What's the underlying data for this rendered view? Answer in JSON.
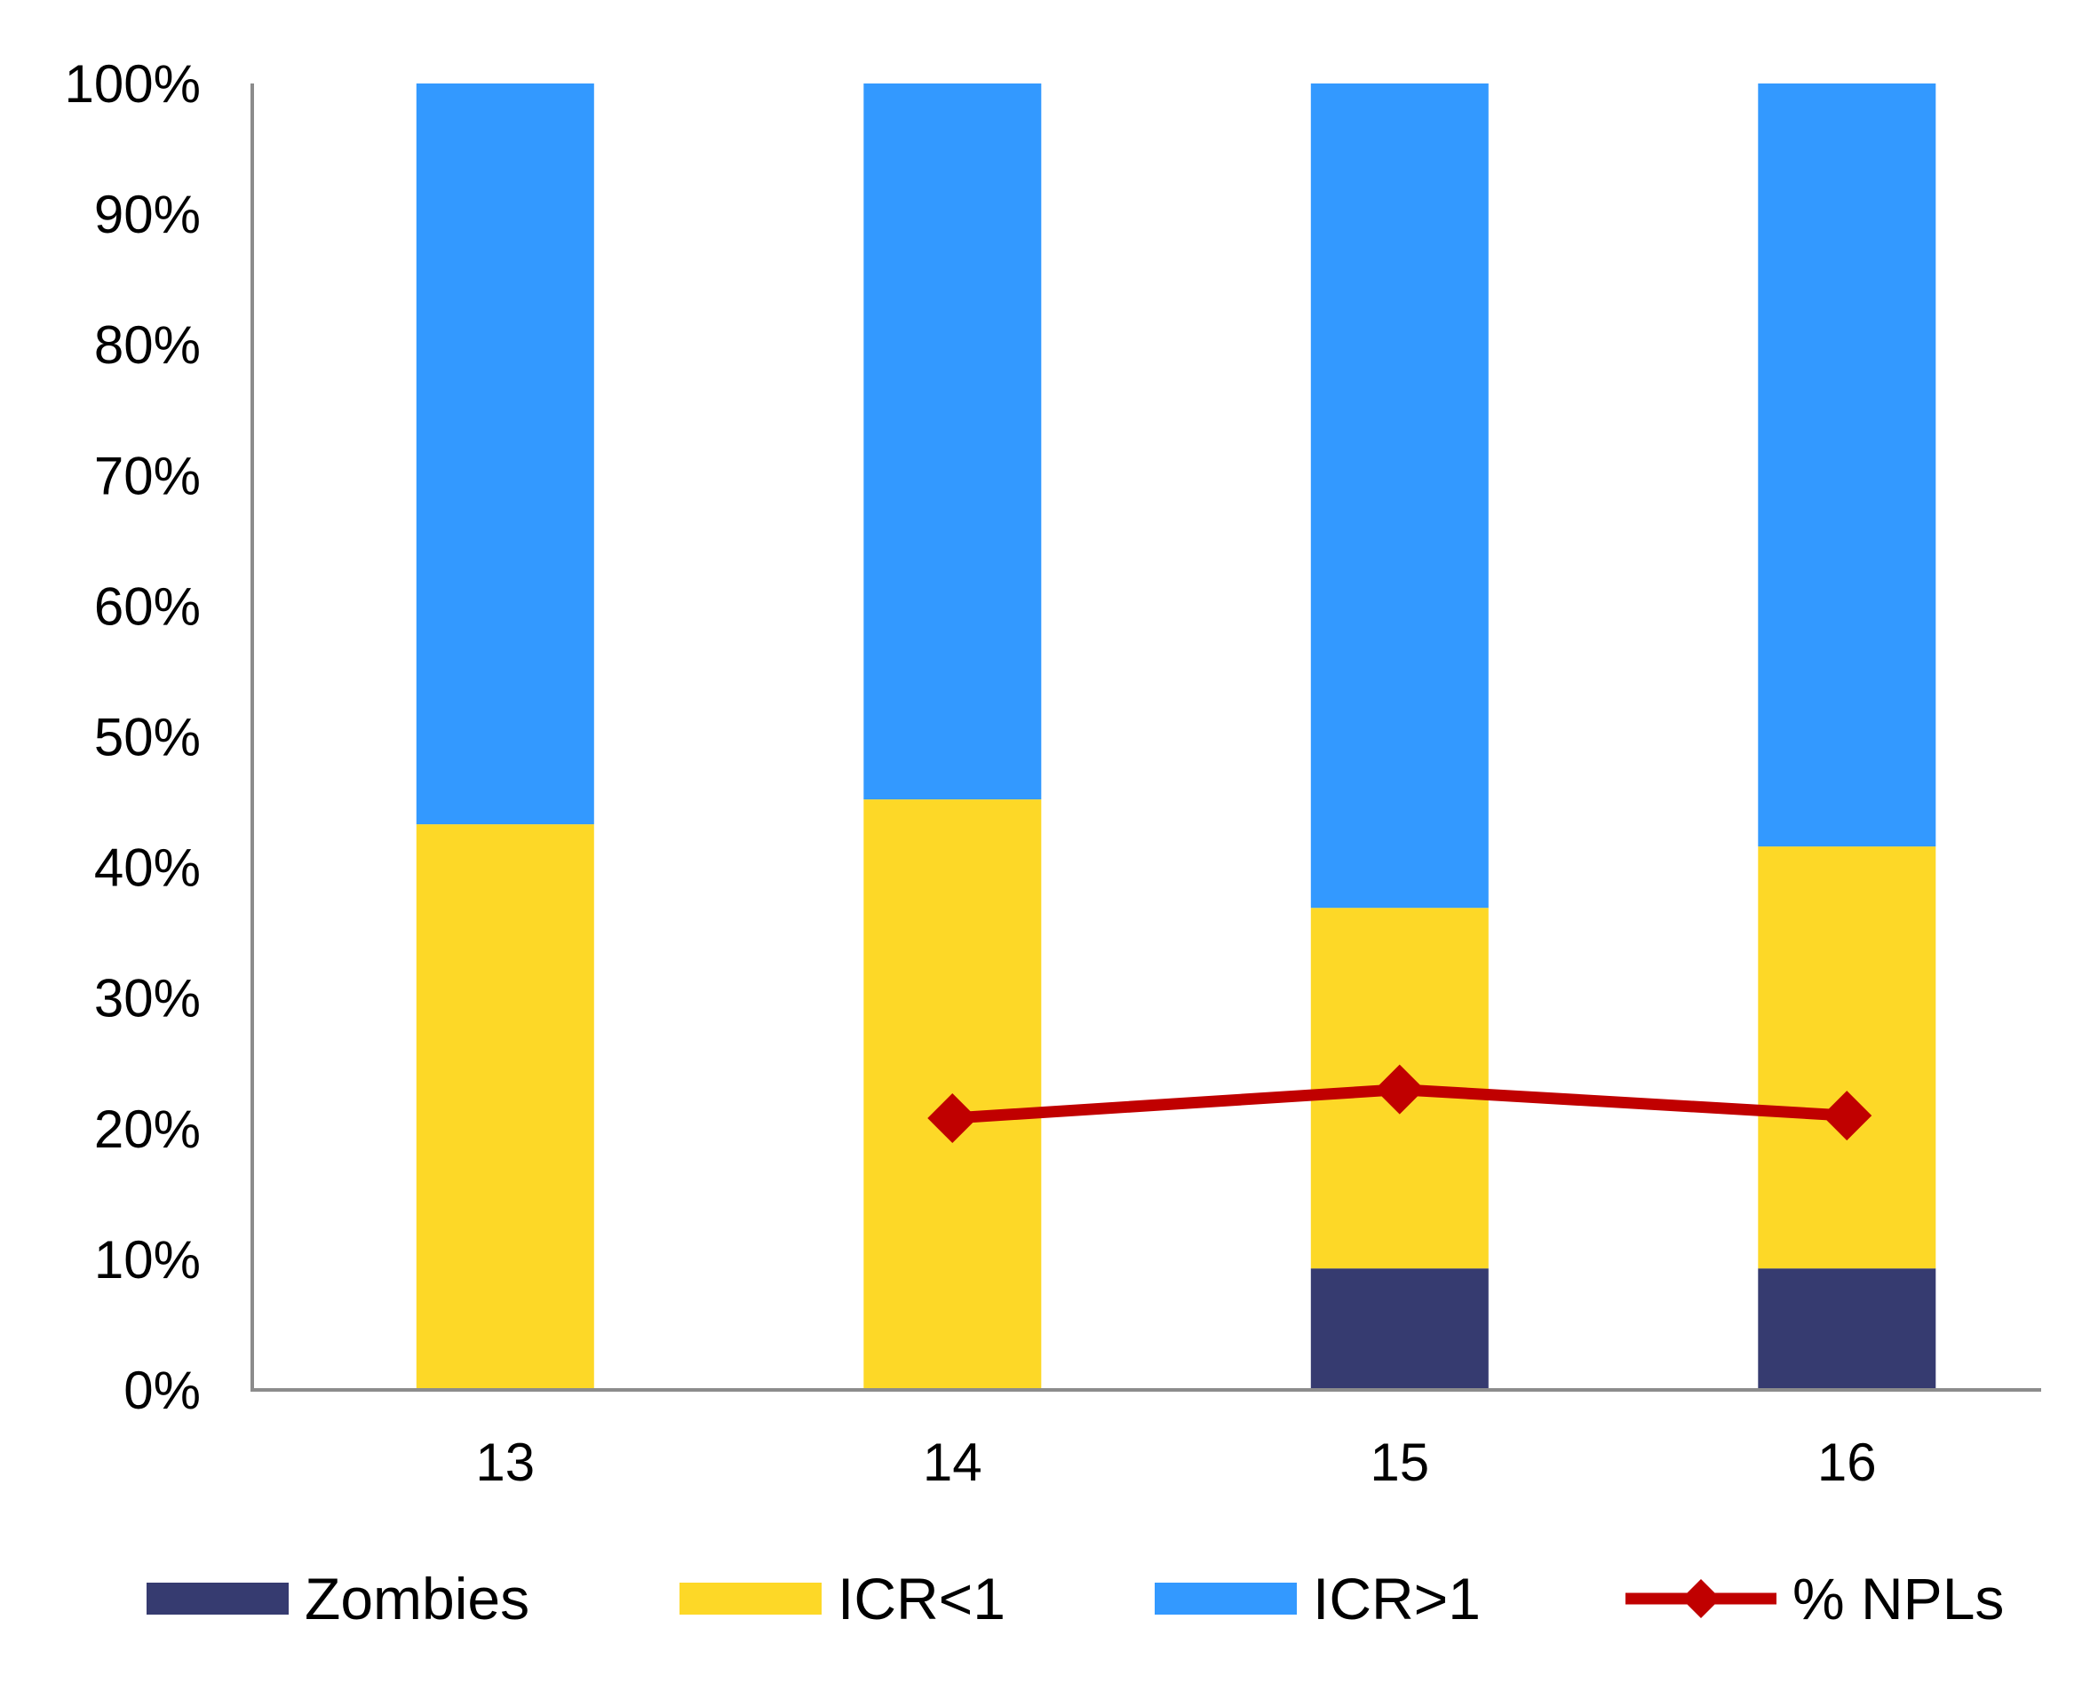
{
  "chart_data": {
    "type": "bar",
    "stacked": true,
    "title": "",
    "xlabel": "",
    "ylabel": "",
    "ylim": [
      0,
      100
    ],
    "yticks": [
      "0%",
      "10%",
      "20%",
      "30%",
      "40%",
      "50%",
      "60%",
      "70%",
      "80%",
      "90%",
      "100%"
    ],
    "categories": [
      "13",
      "14",
      "15",
      "16"
    ],
    "series": [
      {
        "name": "Zombies",
        "type": "bar",
        "color": "#363B70",
        "values": [
          0,
          0,
          9.3,
          9.3
        ]
      },
      {
        "name": "ICR<1",
        "type": "bar",
        "color": "#FDD827",
        "values": [
          43.3,
          45.2,
          27.6,
          32.3
        ]
      },
      {
        "name": "ICR>1",
        "type": "bar",
        "color": "#3399FF",
        "values": [
          56.7,
          54.8,
          63.1,
          58.4
        ]
      },
      {
        "name": "% NPLs",
        "type": "line",
        "color": "#C00000",
        "marker": "diamond",
        "values": [
          null,
          20.8,
          23.0,
          21.0
        ]
      }
    ],
    "legend_position": "bottom",
    "grid": false
  }
}
